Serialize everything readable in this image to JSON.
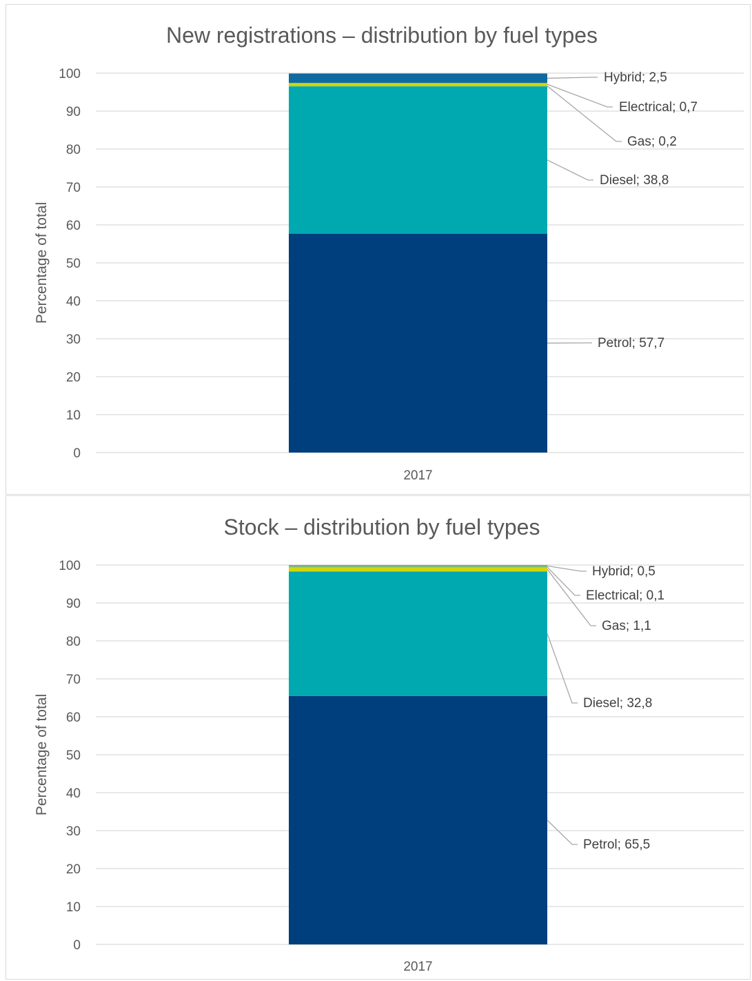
{
  "chart_data": [
    {
      "type": "bar",
      "stacked": true,
      "title": "New registrations – distribution by fuel types",
      "ylabel": "Percentage of total",
      "xlabel": "",
      "ylim": [
        0,
        100
      ],
      "yticks": [
        0,
        10,
        20,
        30,
        40,
        50,
        60,
        70,
        80,
        90,
        100
      ],
      "grid": true,
      "legend": "none",
      "categories": [
        "2017"
      ],
      "series": [
        {
          "name": "Petrol",
          "values": [
            57.7
          ],
          "color": "#003f7d",
          "label": "Petrol; 57,7"
        },
        {
          "name": "Diesel",
          "values": [
            38.8
          ],
          "color": "#00a9b0",
          "label": "Diesel; 38,8"
        },
        {
          "name": "Gas",
          "values": [
            0.2
          ],
          "color": "#8cc63f",
          "label": "Gas; 0,2"
        },
        {
          "name": "Electrical",
          "values": [
            0.7
          ],
          "color": "#d4d60c",
          "label": "Electrical; 0,7"
        },
        {
          "name": "Hybrid",
          "values": [
            2.5
          ],
          "color": "#0e6aa0",
          "label": "Hybrid; 2,5"
        }
      ]
    },
    {
      "type": "bar",
      "stacked": true,
      "title": "Stock – distribution by fuel types",
      "ylabel": "Percentage of total",
      "xlabel": "",
      "ylim": [
        0,
        100
      ],
      "yticks": [
        0,
        10,
        20,
        30,
        40,
        50,
        60,
        70,
        80,
        90,
        100
      ],
      "grid": true,
      "legend": "none",
      "categories": [
        "2017"
      ],
      "series": [
        {
          "name": "Petrol",
          "values": [
            65.5
          ],
          "color": "#003f7d",
          "label": "Petrol; 65,5"
        },
        {
          "name": "Diesel",
          "values": [
            32.8
          ],
          "color": "#00a9b0",
          "label": "Diesel; 32,8"
        },
        {
          "name": "Gas",
          "values": [
            1.1
          ],
          "color": "#d4d60c",
          "label": "Gas; 1,1"
        },
        {
          "name": "Electrical",
          "values": [
            0.1
          ],
          "color": "#3f8fbf",
          "label": "Electrical; 0,1"
        },
        {
          "name": "Hybrid",
          "values": [
            0.5
          ],
          "color": "#7ab56a",
          "label": "Hybrid; 0,5"
        }
      ]
    }
  ]
}
